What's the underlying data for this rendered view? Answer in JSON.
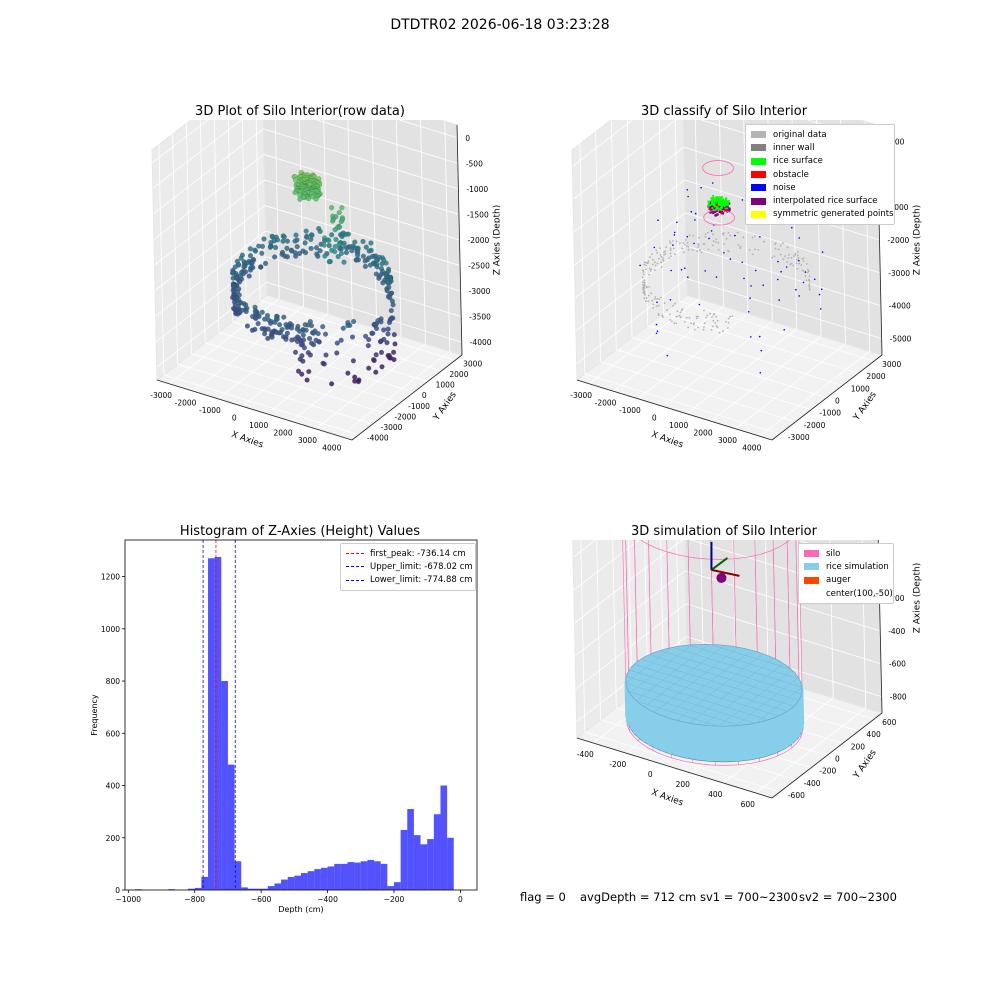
{
  "figure": {
    "suptitle": "DTDTR02 2026-06-18 03:23:28",
    "footer": {
      "flag": "flag = 0",
      "avg_depth": "avgDepth = 712 cm",
      "sv1": "sv1 = 700~2300",
      "sv2": "sv2 = 700~2300"
    }
  },
  "colors": {
    "original_data": "#b3b3b3",
    "inner_wall": "#808080",
    "rice_surface": "#00ff00",
    "obstacle": "#ff0000",
    "noise": "#0000ff",
    "interpolated_rice_surface": "#800080",
    "symmetric_generated_points": "#ffff00",
    "silo": "#ff69b4",
    "rice_simulation": "#87ceeb",
    "auger": "#ff4500",
    "histogram_bar": "#0000ff",
    "first_peak_line": "#ff0000",
    "limit_line": "#0000ff"
  },
  "chart_data": [
    {
      "type": "scatter",
      "title": "3D Plot of Silo Interior(row data)",
      "xlabel": "X Axies",
      "ylabel": "Y Axies",
      "zlabel": "Z Axies (Depth)",
      "x_ticks": [
        "-3000",
        "-2000",
        "-1000",
        "0",
        "1000",
        "2000",
        "3000",
        "4000"
      ],
      "y_ticks": [
        "-4000",
        "-3000",
        "-2000",
        "-1000",
        "0",
        "1000",
        "2000",
        "3000"
      ],
      "z_ticks": [
        "0",
        "-500",
        "-1000",
        "-1500",
        "-2000",
        "-2500",
        "-3000",
        "-3500",
        "-4000"
      ],
      "xlim": [
        -3500,
        4200
      ],
      "ylim": [
        -4200,
        3500
      ],
      "zlim": [
        -4200,
        200
      ],
      "colormap": "viridis by depth"
    },
    {
      "type": "scatter",
      "title": "3D classify of Silo Interior",
      "xlabel": "X Axies",
      "ylabel": "Y Axies",
      "zlabel": "Z Axies (Depth)",
      "x_ticks": [
        "-3000",
        "-2000",
        "-1000",
        "0",
        "1000",
        "2000",
        "3000",
        "4000"
      ],
      "y_ticks": [
        "-3000",
        "-2000",
        "-1000",
        "0",
        "1000",
        "2000",
        "3000"
      ],
      "z_ticks": [
        "1000",
        "0",
        "-1000",
        "-2000",
        "-3000",
        "-4000",
        "-5000"
      ],
      "xlim": [
        -3500,
        4200
      ],
      "ylim": [
        -3500,
        3500
      ],
      "zlim": [
        -5400,
        1100
      ],
      "legend": [
        "original data",
        "inner wall",
        "rice surface",
        "obstacle",
        "noise",
        "interpolated rice surface",
        "symmetric generated points"
      ],
      "legend_position": "top-right"
    },
    {
      "type": "bar",
      "title": "Histogram of Z-Axies (Height) Values",
      "xlabel": "Depth (cm)",
      "ylabel": "Frequency",
      "xlim": [
        -1010,
        50
      ],
      "ylim": [
        0,
        1340
      ],
      "x_ticks": [
        "−1000",
        "−800",
        "−600",
        "−400",
        "−200",
        "0"
      ],
      "y_ticks": [
        "0",
        "200",
        "400",
        "600",
        "800",
        "1000",
        "1200"
      ],
      "bin_width": 20,
      "bin_starts": [
        -980,
        -880,
        -820,
        -800,
        -780,
        -760,
        -740,
        -720,
        -700,
        -680,
        -660,
        -640,
        -620,
        -600,
        -580,
        -560,
        -540,
        -520,
        -500,
        -480,
        -460,
        -440,
        -420,
        -400,
        -380,
        -360,
        -340,
        -320,
        -300,
        -280,
        -260,
        -240,
        -220,
        -200,
        -180,
        -160,
        -140,
        -120,
        -100,
        -80,
        -60,
        -40,
        -20
      ],
      "values": [
        3,
        3,
        5,
        8,
        50,
        1270,
        1275,
        800,
        480,
        110,
        10,
        5,
        5,
        5,
        15,
        25,
        40,
        50,
        55,
        65,
        72,
        80,
        85,
        90,
        100,
        100,
        107,
        105,
        110,
        115,
        110,
        100,
        15,
        30,
        230,
        310,
        210,
        175,
        195,
        290,
        400,
        200,
        0
      ],
      "reference_lines": [
        {
          "label": "first_peak: -736.14 cm",
          "x": -736.14,
          "color": "#ff0000"
        },
        {
          "label": "Upper_limit: -678.02 cm",
          "x": -678.02,
          "color": "#0000ff"
        },
        {
          "label": "Lower_limit: -774.88 cm",
          "x": -774.88,
          "color": "#0000ff"
        }
      ],
      "legend_position": "top-right"
    },
    {
      "type": "scatter",
      "title": "3D simulation of Silo Interior",
      "xlabel": "X Axies",
      "ylabel": "Y Axies",
      "zlabel": "Z Axies (Depth)",
      "x_ticks": [
        "-400",
        "-200",
        "0",
        "200",
        "400",
        "600"
      ],
      "y_ticks": [
        "-600",
        "-400",
        "-200",
        "0",
        "200",
        "400",
        "600"
      ],
      "z_ticks": [
        "400",
        "200",
        "0",
        "-200",
        "-400",
        "-600",
        "-800"
      ],
      "xlim": [
        -560,
        760
      ],
      "ylim": [
        -660,
        660
      ],
      "zlim": [
        -880,
        460
      ],
      "legend": [
        "silo",
        "rice simulation",
        "auger",
        "center(100,-50)"
      ],
      "legend_position": "top-right",
      "silo_radius": 520,
      "silo_z": [
        -900,
        300
      ],
      "rice_depth": -712,
      "center": [
        100,
        -50
      ]
    }
  ]
}
